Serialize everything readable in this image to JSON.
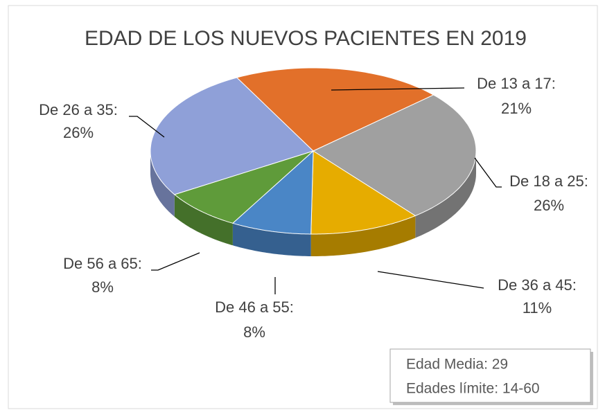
{
  "chart_data": {
    "type": "pie",
    "title": "EDAD DE LOS NUEVOS PACIENTES EN  2019",
    "categories": [
      "De 13 a 17:",
      "De 18 a 25:",
      "De 36 a 45:",
      "De 46 a 55:",
      "De 56 a 65:",
      "De 26 a 35:"
    ],
    "values": [
      21,
      26,
      11,
      8,
      8,
      26
    ],
    "value_labels": [
      "21%",
      "26%",
      "11%",
      "8%",
      "8%",
      "26%"
    ],
    "colors": [
      "#e2702a",
      "#a0a0a0",
      "#e6ac00",
      "#4a86c6",
      "#5f9b3a",
      "#8fa0d8"
    ],
    "annotations": [
      "Edad Media: 29",
      "Edades límite: 14-60"
    ]
  }
}
